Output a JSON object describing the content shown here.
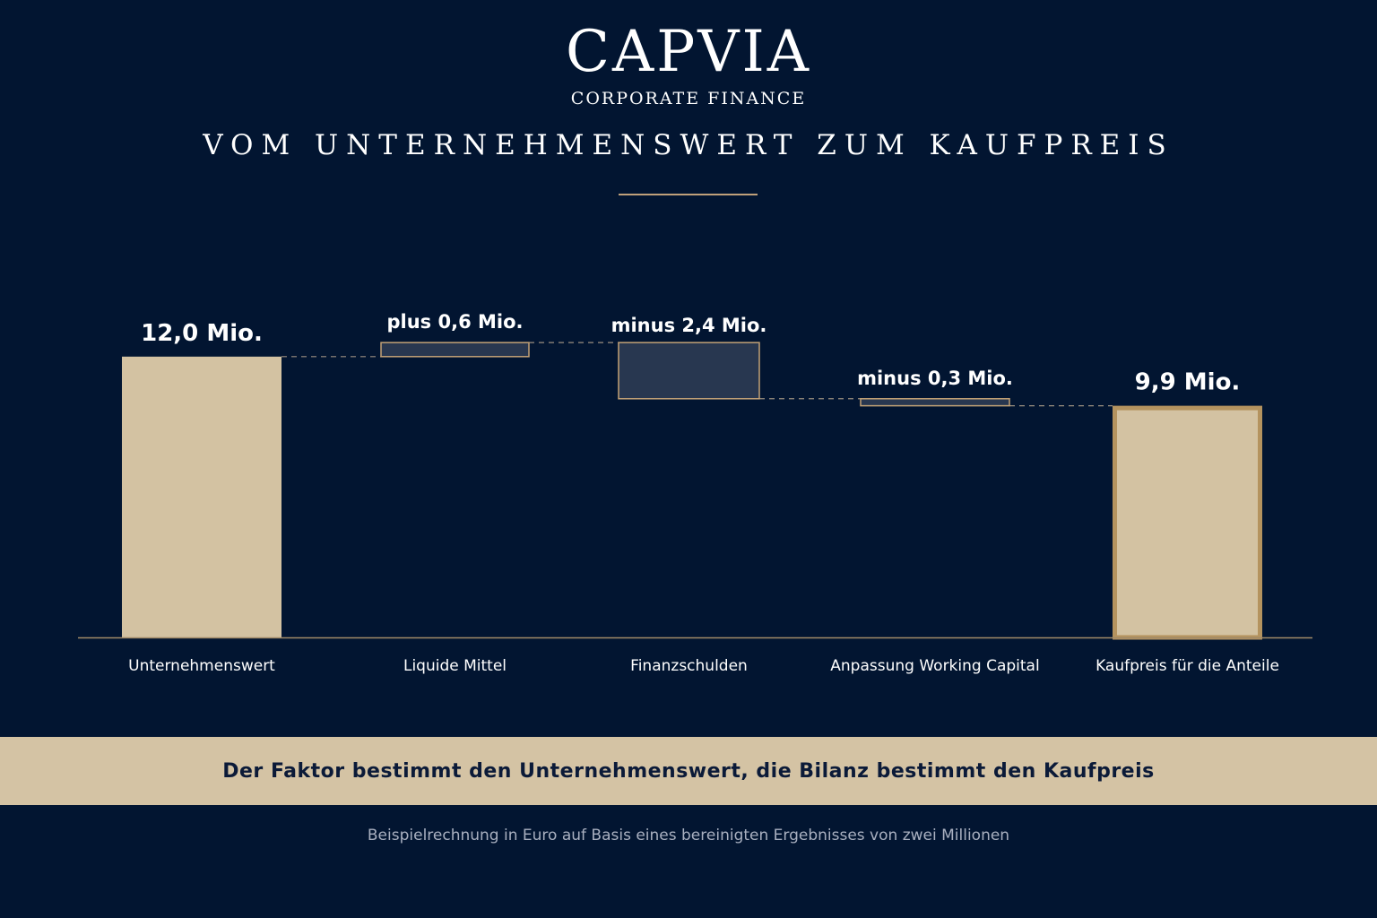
{
  "header": {
    "logo": "CAPVIA",
    "logo_subtitle": "CORPORATE FINANCE"
  },
  "chart_data": {
    "type": "bar",
    "subtype": "waterfall",
    "title": "VOM UNTERNEHMENSWERT ZUM KAUFPREIS",
    "unit": "Mio.",
    "categories": [
      "Unternehmenswert",
      "Liquide Mittel",
      "Finanzschulden",
      "Anpassung Working Capital",
      "Kaufpreis für die Anteile"
    ],
    "steps": [
      {
        "category": "Unternehmenswert",
        "kind": "total",
        "value": 12.0,
        "label": "12,0 Mio."
      },
      {
        "category": "Liquide Mittel",
        "kind": "delta",
        "value": 0.6,
        "label": "plus 0,6 Mio."
      },
      {
        "category": "Finanzschulden",
        "kind": "delta",
        "value": -2.4,
        "label": "minus 2,4 Mio."
      },
      {
        "category": "Anpassung Working Capital",
        "kind": "delta",
        "value": -0.3,
        "label": "minus  0,3 Mio."
      },
      {
        "category": "Kaufpreis für die Anteile",
        "kind": "total",
        "value": 9.9,
        "label": "9,9 Mio."
      }
    ],
    "ylim": [
      0,
      14.5
    ],
    "grid": false,
    "colors": {
      "total": "#d3c2a2",
      "delta": "#283750",
      "outline": "#c3a276",
      "connector": "#9a8f80",
      "baseline": "#a08a68"
    }
  },
  "banner": {
    "text": "Der Faktor bestimmt den Unternehmenswert, die Bilanz bestimmt den Kaufpreis"
  },
  "footnote": "Beispielrechnung in Euro auf Basis eines bereinigten Ergebnisses von zwei Millionen",
  "colors": {
    "background": "#021531",
    "accent": "#bfa07a"
  }
}
